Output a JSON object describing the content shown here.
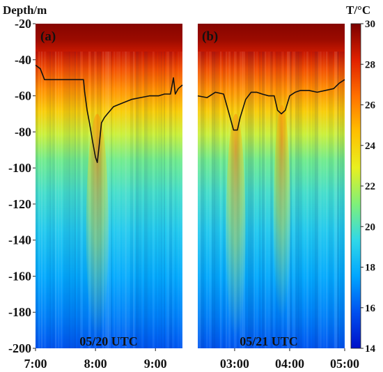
{
  "chart_data": {
    "type": "heatmap",
    "y_axis": {
      "label": "Depth/m",
      "range": [
        -200,
        -20
      ],
      "ticks": [
        -20,
        -40,
        -60,
        -80,
        -100,
        -120,
        -140,
        -160,
        -180,
        -200
      ]
    },
    "colorbar": {
      "label": "T/°C",
      "range": [
        14,
        30
      ],
      "ticks": [
        14,
        16,
        18,
        20,
        22,
        24,
        26,
        28,
        30
      ],
      "colormap": [
        "#0010c8",
        "#0050f0",
        "#00a6ff",
        "#30d8e8",
        "#7ff07a",
        "#e8f020",
        "#ffc000",
        "#ff7000",
        "#e02000",
        "#7a0000"
      ]
    },
    "panels": [
      {
        "tag": "(a)",
        "date_label": "05/20 UTC",
        "x_ticks": [
          "7:00",
          "8:00",
          "9:00"
        ],
        "x_tick_hours": [
          7,
          8,
          9
        ],
        "x_range_hours": [
          7.0,
          9.45
        ],
        "contour_line": {
          "hours": [
            7.0,
            7.08,
            7.15,
            7.3,
            7.6,
            7.8,
            7.82,
            7.86,
            7.9,
            7.95,
            8.0,
            8.03,
            8.06,
            8.1,
            8.15,
            8.2,
            8.3,
            8.45,
            8.6,
            8.75,
            8.9,
            9.05,
            9.15,
            9.25,
            9.3,
            9.33,
            9.38,
            9.45
          ],
          "depths": [
            -43,
            -45,
            -51,
            -51,
            -51,
            -51,
            -58,
            -68,
            -75,
            -85,
            -94,
            -97,
            -88,
            -75,
            -72,
            -70,
            -66,
            -64,
            -62,
            -61,
            -60,
            -60,
            -59,
            -59,
            -50,
            -59,
            -56,
            -54
          ]
        }
      },
      {
        "tag": "(b)",
        "date_label": "05/21 UTC",
        "x_ticks": [
          "03:00",
          "04:00",
          "05:00"
        ],
        "x_tick_hours": [
          3,
          4,
          5
        ],
        "x_range_hours": [
          2.33,
          5.0
        ],
        "contour_line": {
          "hours": [
            2.33,
            2.5,
            2.65,
            2.8,
            2.9,
            2.98,
            3.05,
            3.1,
            3.2,
            3.3,
            3.4,
            3.5,
            3.62,
            3.72,
            3.78,
            3.85,
            3.92,
            4.0,
            4.1,
            4.2,
            4.35,
            4.5,
            4.65,
            4.8,
            4.9,
            5.0
          ],
          "depths": [
            -60,
            -61,
            -58,
            -59,
            -70,
            -79,
            -79,
            -72,
            -62,
            -58,
            -58,
            -59,
            -60,
            -60,
            -68,
            -70,
            -68,
            -60,
            -58,
            -57,
            -57,
            -58,
            -57,
            -56,
            -53,
            -51
          ]
        }
      }
    ]
  }
}
